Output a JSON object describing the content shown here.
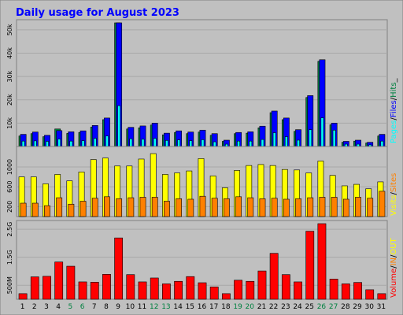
{
  "colors": {
    "background": "#c0c0c0",
    "border": "#808080",
    "title": "#0000ff",
    "pages": "#00ffff",
    "files": "#0000ff",
    "hits": "#008040",
    "visits": "#ffff00",
    "sites": "#ff8000",
    "volume": "#ff0000",
    "weekend_label": "#008040",
    "bar_outline": "#000000"
  },
  "chart_data": {
    "type": "bar",
    "title": "Daily usage for August 2023",
    "categories": [
      "1",
      "2",
      "3",
      "4",
      "5",
      "6",
      "7",
      "8",
      "9",
      "10",
      "11",
      "12",
      "13",
      "14",
      "15",
      "16",
      "17",
      "18",
      "19",
      "20",
      "21",
      "22",
      "23",
      "24",
      "25",
      "26",
      "27",
      "28",
      "29",
      "30",
      "31"
    ],
    "weekend_days": [
      "5",
      "6",
      "12",
      "13",
      "19",
      "20",
      "26",
      "27"
    ],
    "panels": [
      {
        "name": "hits-files-pages",
        "legend": [
          "Pages",
          "Files",
          "Hits"
        ],
        "legend_separator": "/",
        "legend_suffix": "_",
        "ticks": [
          "10k",
          "20k",
          "30k",
          "40k",
          "50k"
        ],
        "tick_values": [
          10000,
          20000,
          30000,
          40000,
          50000
        ],
        "ylim": [
          0,
          53000
        ],
        "series": [
          {
            "name": "Hits",
            "values": [
              4500,
              5500,
              4200,
              7500,
              5600,
              6000,
              8300,
              11500,
              53000,
              7500,
              8000,
              9200,
              5000,
              6000,
              5500,
              6200,
              4800,
              2200,
              5500,
              5700,
              8000,
              14500,
              11500,
              6500,
              21000,
              36500,
              9300,
              1800,
              2300,
              1500,
              4500
            ]
          },
          {
            "name": "Files",
            "values": [
              5200,
              6200,
              4800,
              6800,
              6300,
              6700,
              9000,
              12200,
              53000,
              8200,
              8800,
              10000,
              5700,
              6700,
              6200,
              7000,
              5500,
              2700,
              6000,
              6300,
              8700,
              15200,
              12200,
              7200,
              21800,
              37200,
              10000,
              2200,
              2700,
              1800,
              5200
            ]
          },
          {
            "name": "Pages",
            "values": [
              2300,
              2400,
              2200,
              3200,
              2300,
              2500,
              3500,
              4500,
              17500,
              3300,
              3100,
              3500,
              2600,
              2800,
              2500,
              2900,
              2000,
              1000,
              2300,
              2300,
              3000,
              5900,
              4200,
              2700,
              7200,
              12300,
              7000,
              1000,
              1000,
              700,
              2300
            ]
          }
        ]
      },
      {
        "name": "visits-sites",
        "legend": [
          "Visits",
          "Sites"
        ],
        "legend_separator": "/",
        "ticks": [
          "200",
          "600",
          "1000"
        ],
        "tick_values": [
          200,
          600,
          1000
        ],
        "ylim": [
          0,
          1350
        ],
        "series": [
          {
            "name": "Visits",
            "values": [
              800,
              800,
              660,
              850,
              720,
              900,
              1150,
              1180,
              1020,
              1020,
              1160,
              1270,
              850,
              880,
              920,
              1170,
              820,
              580,
              930,
              1030,
              1050,
              1030,
              950,
              940,
              880,
              1120,
              830,
              620,
              650,
              560,
              700
            ]
          },
          {
            "name": "Sites",
            "values": [
              270,
              270,
              220,
              380,
              250,
              310,
              370,
              400,
              360,
              380,
              390,
              390,
              310,
              360,
              350,
              410,
              370,
              360,
              400,
              380,
              360,
              370,
              350,
              360,
              380,
              390,
              390,
              350,
              390,
              370,
              510
            ]
          }
        ]
      },
      {
        "name": "volume-in-out",
        "legend": [
          "Volume",
          "IN",
          "OUT"
        ],
        "legend_separator": "/",
        "ticks": [
          "500M",
          "1.5G",
          "2.5G"
        ],
        "tick_values": [
          500,
          1500,
          2500
        ],
        "ylim": [
          0,
          2700
        ],
        "series": [
          {
            "name": "Volume",
            "values": [
              200,
              800,
              820,
              1330,
              1180,
              620,
              610,
              890,
              2190,
              880,
              620,
              760,
              550,
              640,
              810,
              590,
              440,
              200,
              680,
              640,
              1010,
              1640,
              880,
              620,
              2430,
              2700,
              720,
              550,
              600,
              340,
              200
            ]
          }
        ]
      }
    ]
  }
}
